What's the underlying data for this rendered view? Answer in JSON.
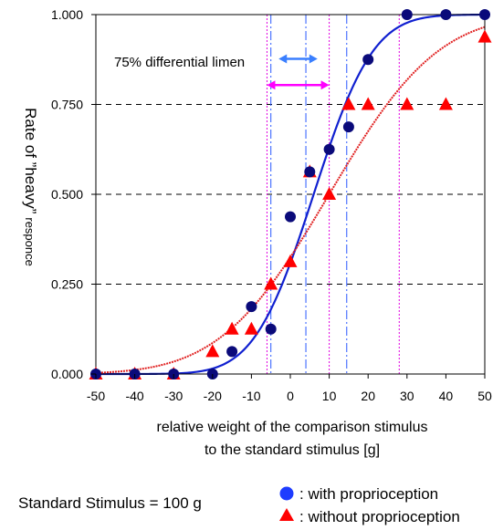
{
  "chart_data": {
    "type": "scatter",
    "title": "",
    "xlabel_lines": [
      "relative weight of the comparison stimulus",
      "to the standard stimulus [g]"
    ],
    "ylabel": {
      "part1": "Rate of ”heavy”",
      "part2": "responce"
    },
    "xlim": [
      -50,
      50
    ],
    "ylim": [
      0,
      1
    ],
    "x_ticks": [
      "-50",
      "-40",
      "-30",
      "-20",
      "-10",
      "0",
      "10",
      "20",
      "30",
      "40",
      "50"
    ],
    "y_ticks": [
      "0.000",
      "0.250",
      "0.500",
      "0.750",
      "1.000"
    ],
    "grid": "horizontal dashed at 0.25, 0.5, 0.75",
    "annotation": "75% differential limen",
    "footnote": "Standard Stimulus = 100 g",
    "series": [
      {
        "name": ": with proprioception",
        "marker": "circle",
        "color": "#0a0a7a",
        "legend_color": "#1e3cff",
        "x": [
          -50,
          -40,
          -30,
          -20,
          -15,
          -10,
          -5,
          0,
          5,
          10,
          15,
          20,
          30,
          40,
          50
        ],
        "y": [
          0.0,
          0.0,
          0.0,
          0.0,
          0.0625,
          0.1875,
          0.125,
          0.4375,
          0.5625,
          0.625,
          0.6875,
          0.875,
          1.0,
          1.0,
          1.0
        ]
      },
      {
        "name": ": without proprioception",
        "marker": "triangle",
        "color": "#ff0000",
        "legend_color": "#ff0000",
        "x": [
          -50,
          -40,
          -30,
          -20,
          -15,
          -10,
          -5,
          0,
          5,
          10,
          15,
          20,
          30,
          40,
          50
        ],
        "y": [
          0.0,
          0.0,
          0.0,
          0.0625,
          0.125,
          0.125,
          0.25,
          0.3125,
          0.5625,
          0.5,
          0.75,
          0.75,
          0.75,
          0.75,
          0.9375
        ]
      }
    ],
    "fits": [
      {
        "series": ": with proprioception",
        "color": "#1020d0",
        "style": "solid",
        "mu": 6.0,
        "sigma": 12.0
      },
      {
        "series": ": without proprioception",
        "color": "#e02020",
        "style": "dotted",
        "mu": 10.0,
        "sigma": 22.0
      }
    ],
    "reference_lines": [
      {
        "x": -6,
        "color": "#e000e0",
        "style": "dotted"
      },
      {
        "x": -5,
        "color": "#2a58ff",
        "style": "dashdot"
      },
      {
        "x": 4,
        "color": "#2a58ff",
        "style": "dashdot"
      },
      {
        "x": 10,
        "color": "#e000e0",
        "style": "dotted"
      },
      {
        "x": 14.5,
        "color": "#2a58ff",
        "style": "dashdot"
      },
      {
        "x": 28,
        "color": "#e000e0",
        "style": "dotted"
      }
    ],
    "arrows": [
      {
        "x1": -3,
        "x2": 7,
        "y": 0.877,
        "color": "#3a7fff"
      },
      {
        "x1": -6,
        "x2": 10,
        "y": 0.804,
        "color": "#ff00ff"
      }
    ]
  }
}
